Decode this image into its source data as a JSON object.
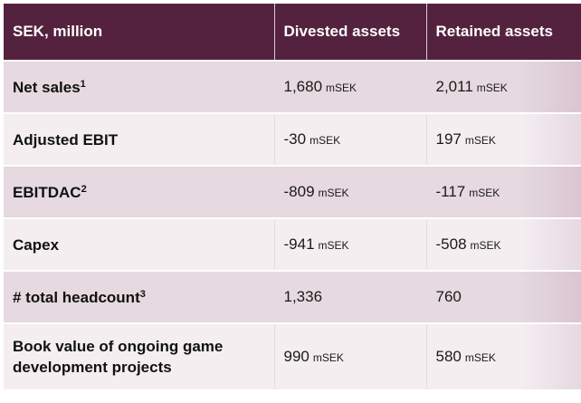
{
  "header": {
    "col1": "SEK, million",
    "col2": "Divested assets",
    "col3": "Retained assets"
  },
  "rows": [
    {
      "label": "Net sales",
      "footnote": "1",
      "divested": "1,680",
      "divested_unit": "mSEK",
      "retained": "2,011",
      "retained_unit": "mSEK"
    },
    {
      "label": "Adjusted EBIT",
      "footnote": "",
      "divested": "-30",
      "divested_unit": "mSEK",
      "retained": "197",
      "retained_unit": "mSEK"
    },
    {
      "label": "EBITDAC",
      "footnote": "2",
      "divested": "-809",
      "divested_unit": "mSEK",
      "retained": "-117",
      "retained_unit": "mSEK"
    },
    {
      "label": "Capex",
      "footnote": "",
      "divested": "-941",
      "divested_unit": "mSEK",
      "retained": "-508",
      "retained_unit": "mSEK"
    },
    {
      "label": "# total headcount",
      "footnote": "3",
      "divested": "1,336",
      "divested_unit": "",
      "retained": "760",
      "retained_unit": ""
    },
    {
      "label": "Book value of ongoing game development projects",
      "footnote": "",
      "divested": "990",
      "divested_unit": "mSEK",
      "retained": "580",
      "retained_unit": "mSEK"
    }
  ],
  "colors": {
    "header_bg": "#54223f",
    "row_dark": "#e6d9df",
    "row_light": "#f4eef1"
  }
}
